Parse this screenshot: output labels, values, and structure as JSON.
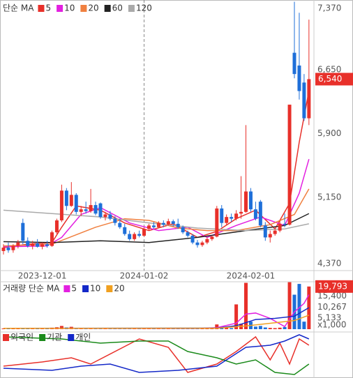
{
  "chart_data": [
    {
      "type": "candlestick",
      "legend_title": "단순 MA",
      "categories": [
        null,
        null,
        null,
        null,
        null,
        null,
        null,
        null,
        "2023-12-01",
        null,
        null,
        null,
        null,
        null,
        null,
        null,
        null,
        null,
        null,
        null,
        null,
        null,
        null,
        null,
        null,
        null,
        null,
        null,
        null,
        "2024-01-02",
        null,
        null,
        null,
        null,
        null,
        null,
        null,
        null,
        null,
        null,
        null,
        null,
        null,
        null,
        null,
        null,
        null,
        null,
        null,
        null,
        null,
        "2024-02-01",
        null,
        null,
        null,
        null,
        null,
        null,
        null,
        null,
        null,
        null,
        null,
        null
      ],
      "open": [
        4520,
        4560,
        4530,
        4580,
        4850,
        4640,
        4580,
        4610,
        4570,
        4600,
        4580,
        4740,
        4880,
        5230,
        5050,
        5180,
        4980,
        5010,
        4990,
        5060,
        5080,
        4920,
        4950,
        4900,
        4850,
        4800,
        4720,
        4660,
        4720,
        4700,
        4780,
        4820,
        4800,
        4850,
        4830,
        4870,
        4840,
        4800,
        4740,
        4700,
        4620,
        4590,
        4620,
        4660,
        4690,
        5020,
        4850,
        4920,
        4900,
        4960,
        4980,
        5220,
        5010,
        5100,
        4820,
        4680,
        4720,
        4760,
        4840,
        4830,
        6850,
        6700,
        6500,
        6080
      ],
      "high": [
        4600,
        4620,
        4600,
        4650,
        4900,
        4680,
        4640,
        4660,
        4620,
        4640,
        4760,
        4900,
        5300,
        5260,
        5330,
        5200,
        5050,
        5100,
        5250,
        5100,
        5090,
        4980,
        4990,
        4930,
        4900,
        4840,
        4760,
        4740,
        4760,
        4800,
        4840,
        4860,
        4870,
        4880,
        4900,
        4890,
        4900,
        4820,
        4760,
        4720,
        4650,
        4640,
        4680,
        4700,
        5050,
        5060,
        4950,
        4960,
        5000,
        5400,
        6000,
        5260,
        5100,
        5120,
        4860,
        4760,
        4780,
        4880,
        4960,
        6240,
        7450,
        7320,
        6600,
        7240
      ],
      "low": [
        4480,
        4500,
        4500,
        4550,
        4600,
        4560,
        4540,
        4560,
        4540,
        4560,
        4570,
        4720,
        4860,
        5000,
        5040,
        4950,
        4930,
        4960,
        4970,
        4940,
        4900,
        4880,
        4880,
        4820,
        4780,
        4700,
        4640,
        4640,
        4680,
        4690,
        4760,
        4780,
        4790,
        4800,
        4820,
        4810,
        4780,
        4720,
        4680,
        4600,
        4560,
        4570,
        4600,
        4640,
        4680,
        4800,
        4830,
        4860,
        4880,
        4900,
        4970,
        4980,
        4880,
        4800,
        4640,
        4620,
        4700,
        4740,
        4800,
        4820,
        6550,
        6300,
        6050,
        6000
      ],
      "close": [
        4560,
        4530,
        4580,
        4620,
        4640,
        4580,
        4610,
        4570,
        4600,
        4580,
        4740,
        4880,
        5230,
        5050,
        5180,
        4980,
        5010,
        4990,
        5060,
        4960,
        4920,
        4950,
        4900,
        4850,
        4800,
        4720,
        4660,
        4720,
        4700,
        4780,
        4820,
        4800,
        4850,
        4830,
        4870,
        4840,
        4800,
        4740,
        4700,
        4620,
        4590,
        4620,
        4660,
        4690,
        5020,
        4850,
        4920,
        4900,
        4960,
        4980,
        5220,
        5010,
        4900,
        4820,
        4680,
        4720,
        4760,
        4840,
        4830,
        6240,
        6600,
        6400,
        6080,
        6540
      ],
      "up_color": "#e8302a",
      "down_color": "#1e6fd9",
      "ylim": [
        4290,
        7470
      ],
      "yticks": [
        {
          "value": 7370,
          "label": "7,370"
        },
        {
          "value": 6650,
          "label": "6,650"
        },
        {
          "value": 5900,
          "label": "5,900"
        },
        {
          "value": 5150,
          "label": "5,150"
        },
        {
          "value": 4370,
          "label": "4,370"
        }
      ],
      "last_label": {
        "value": 6540,
        "label": "6,540"
      },
      "vline": {
        "x": 29
      },
      "series": [
        {
          "name": "5",
          "color": "#e8302a",
          "x": [
            0,
            5,
            10,
            12,
            15,
            20,
            25,
            30,
            35,
            40,
            44,
            48,
            52,
            56,
            59,
            61,
            63
          ],
          "values": [
            4560,
            4600,
            4620,
            4800,
            5050,
            5000,
            4850,
            4760,
            4840,
            4680,
            4750,
            4900,
            5000,
            4780,
            5080,
            5800,
            6400
          ]
        },
        {
          "name": "10",
          "color": "#e320e0",
          "x": [
            0,
            9,
            12,
            16,
            20,
            26,
            32,
            38,
            42,
            48,
            53,
            58,
            61,
            63
          ],
          "values": [
            4570,
            4580,
            4680,
            4950,
            5030,
            4850,
            4760,
            4800,
            4680,
            4820,
            4920,
            4820,
            5200,
            5600
          ]
        },
        {
          "name": "20",
          "color": "#f08040",
          "x": [
            0,
            10,
            19,
            25,
            30,
            36,
            42,
            48,
            55,
            60,
            63
          ],
          "values": [
            4580,
            4600,
            4800,
            4900,
            4880,
            4790,
            4760,
            4760,
            4830,
            4950,
            5250
          ]
        },
        {
          "name": "60",
          "color": "#222222",
          "x": [
            0,
            10,
            20,
            30,
            40,
            50,
            58,
            63
          ],
          "values": [
            4630,
            4620,
            4640,
            4620,
            4680,
            4760,
            4820,
            4960
          ]
        },
        {
          "name": "120",
          "color": "#aaaaaa",
          "x": [
            0,
            10,
            20,
            30,
            40,
            50,
            58,
            63
          ],
          "values": [
            5000,
            4960,
            4920,
            4850,
            4790,
            4760,
            4780,
            4840
          ]
        }
      ]
    },
    {
      "type": "bar",
      "legend_title": "거래량 단순 MA",
      "values": [
        320,
        280,
        300,
        350,
        600,
        400,
        300,
        280,
        300,
        260,
        700,
        900,
        1500,
        800,
        1100,
        600,
        400,
        350,
        500,
        450,
        420,
        300,
        320,
        280,
        300,
        350,
        420,
        300,
        280,
        320,
        300,
        260,
        280,
        300,
        320,
        260,
        300,
        350,
        380,
        420,
        350,
        300,
        280,
        320,
        2200,
        900,
        600,
        500,
        11500,
        2500,
        21500,
        3500,
        1200,
        1500,
        800,
        600,
        500,
        700,
        1000,
        21800,
        16000,
        21000,
        3500,
        19793
      ],
      "ylim": [
        0,
        22000
      ],
      "yticks": [
        {
          "value": 15400,
          "label": "15,400"
        },
        {
          "value": 10267,
          "label": "10,267"
        },
        {
          "value": 5133,
          "label": "5,133"
        }
      ],
      "unit_label": "x1,000",
      "last_label": {
        "value": 19793,
        "label": "19,793"
      },
      "series": [
        {
          "name": "5",
          "color": "#e320e0",
          "x": [
            0,
            40,
            44,
            48,
            50,
            52,
            55,
            58,
            60,
            62,
            63
          ],
          "values": [
            400,
            350,
            700,
            2800,
            7000,
            7500,
            5000,
            1200,
            8000,
            12000,
            16000
          ]
        },
        {
          "name": "10",
          "color": "#1428c8",
          "x": [
            0,
            44,
            48,
            52,
            56,
            60,
            63
          ],
          "values": [
            400,
            500,
            1600,
            4500,
            5000,
            6000,
            10000
          ]
        },
        {
          "name": "20",
          "color": "#f0a020",
          "x": [
            0,
            44,
            50,
            56,
            60,
            63
          ],
          "values": [
            400,
            450,
            1500,
            3000,
            4000,
            6500
          ]
        }
      ]
    },
    {
      "type": "line",
      "ylim": [
        0,
        100
      ],
      "series": [
        {
          "name": "외국인",
          "color": "#e8302a",
          "x": [
            0,
            8,
            14,
            18,
            28,
            34,
            38,
            44,
            48,
            52,
            55,
            57,
            59,
            61,
            63
          ],
          "values": [
            25,
            35,
            45,
            30,
            90,
            70,
            10,
            30,
            60,
            95,
            40,
            80,
            30,
            90,
            75
          ]
        },
        {
          "name": "기관",
          "color": "#1a8a1a",
          "x": [
            0,
            12,
            20,
            28,
            34,
            38,
            44,
            48,
            52,
            56,
            60,
            63
          ],
          "values": [
            95,
            90,
            80,
            85,
            85,
            60,
            45,
            30,
            40,
            10,
            5,
            30
          ]
        },
        {
          "name": "개인",
          "color": "#1428c8",
          "x": [
            0,
            10,
            16,
            22,
            28,
            36,
            44,
            50,
            55,
            58,
            61,
            63
          ],
          "values": [
            20,
            15,
            25,
            30,
            10,
            15,
            25,
            70,
            75,
            85,
            100,
            90
          ]
        }
      ]
    }
  ]
}
